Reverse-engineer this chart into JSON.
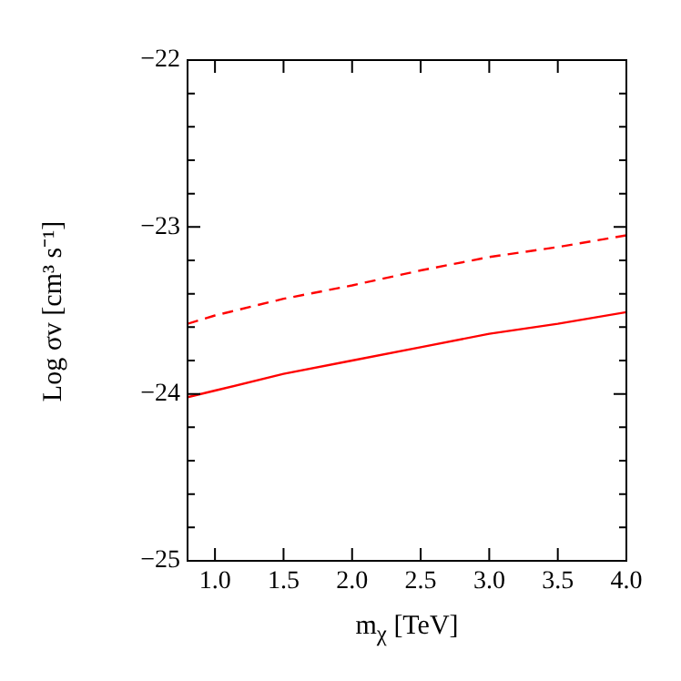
{
  "chart_data": {
    "type": "line",
    "xlabel": "m$_{χ}$ [TeV]",
    "ylabel": "Log σv [cm³ s⁻¹]",
    "x": [
      0.8,
      1.0,
      1.5,
      2.0,
      2.5,
      3.0,
      3.5,
      4.0
    ],
    "series": [
      {
        "color": "#ff0000",
        "line_style": "solid",
        "values": [
          -24.02,
          -23.98,
          -23.88,
          -23.8,
          -23.72,
          -23.64,
          -23.58,
          -23.51
        ]
      },
      {
        "color": "#ff0000",
        "line_style": "dashed",
        "values": [
          -23.58,
          -23.53,
          -23.43,
          -23.35,
          -23.26,
          -23.18,
          -23.12,
          -23.05
        ]
      }
    ],
    "xlim": [
      0.8,
      4.0
    ],
    "xticks": [
      {
        "value": 1.0,
        "label": "1.0"
      },
      {
        "value": 1.5,
        "label": "1.5"
      },
      {
        "value": 2.0,
        "label": "2.0"
      },
      {
        "value": 2.5,
        "label": "2.5"
      },
      {
        "value": 3.0,
        "label": "3.0"
      },
      {
        "value": 3.5,
        "label": "3.5"
      },
      {
        "value": 4.0,
        "label": "4.0"
      }
    ],
    "ylim": [
      -25,
      -22
    ],
    "yticks": [
      -25,
      {
        "value": -24.8,
        "label": null
      },
      {
        "value": -24.6,
        "label": null
      },
      {
        "value": -24.4,
        "label": null
      },
      {
        "value": -24.2,
        "label": null
      },
      -24,
      {
        "value": -23.8,
        "label": null
      },
      {
        "value": -23.6,
        "label": null
      },
      {
        "value": -23.4,
        "label": null
      },
      {
        "value": -23.2,
        "label": null
      },
      -23,
      {
        "value": -22.8,
        "label": null
      },
      {
        "value": -22.6,
        "label": null
      },
      {
        "value": -22.4,
        "label": null
      },
      {
        "value": -22.2,
        "label": null
      },
      -22
    ],
    "grid": false,
    "legend": false,
    "marker": "none"
  }
}
